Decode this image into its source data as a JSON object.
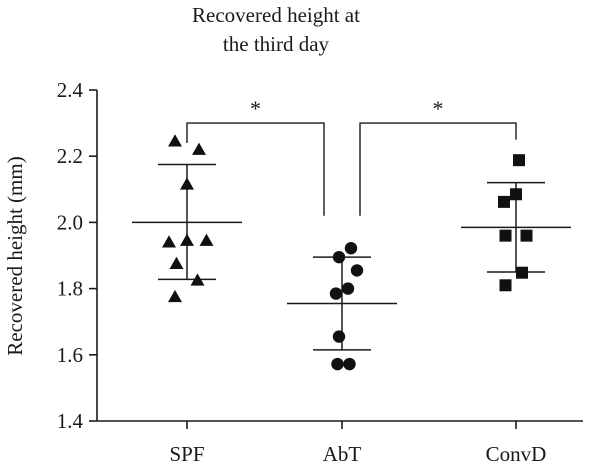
{
  "chart_data": {
    "type": "scatter",
    "title_lines": [
      "Recovered height at",
      "the third day"
    ],
    "xlabel": "",
    "ylabel": "Recovered height (mm)",
    "ylim": [
      1.4,
      2.4
    ],
    "yticks": [
      "1.4",
      "1.6",
      "1.8",
      "2.0",
      "2.2",
      "2.4"
    ],
    "categories": [
      "SPF",
      "AbT",
      "ConvD"
    ],
    "grid": false,
    "groups": [
      {
        "category": "SPF",
        "marker": "triangle",
        "mean": 2.0,
        "sd_upper": 2.175,
        "sd_lower": 1.828,
        "points": [
          {
            "dx": -0.08,
            "y": 2.245
          },
          {
            "dx": 0.08,
            "y": 2.22
          },
          {
            "dx": 0.0,
            "y": 2.115
          },
          {
            "dx": -0.12,
            "y": 1.94
          },
          {
            "dx": 0.0,
            "y": 1.945
          },
          {
            "dx": 0.13,
            "y": 1.945
          },
          {
            "dx": -0.07,
            "y": 1.875
          },
          {
            "dx": 0.07,
            "y": 1.825
          },
          {
            "dx": -0.08,
            "y": 1.775
          }
        ]
      },
      {
        "category": "AbT",
        "marker": "circle",
        "mean": 1.755,
        "sd_upper": 1.895,
        "sd_lower": 1.615,
        "points": [
          {
            "dx": 0.06,
            "y": 1.922
          },
          {
            "dx": -0.02,
            "y": 1.895
          },
          {
            "dx": 0.1,
            "y": 1.855
          },
          {
            "dx": 0.04,
            "y": 1.8
          },
          {
            "dx": -0.04,
            "y": 1.785
          },
          {
            "dx": -0.02,
            "y": 1.655
          },
          {
            "dx": -0.03,
            "y": 1.572
          },
          {
            "dx": 0.05,
            "y": 1.572
          }
        ]
      },
      {
        "category": "ConvD",
        "marker": "square",
        "mean": 1.985,
        "sd_upper": 2.12,
        "sd_lower": 1.85,
        "points": [
          {
            "dx": 0.02,
            "y": 2.188
          },
          {
            "dx": 0.0,
            "y": 2.085
          },
          {
            "dx": -0.08,
            "y": 2.062
          },
          {
            "dx": -0.07,
            "y": 1.96
          },
          {
            "dx": 0.07,
            "y": 1.96
          },
          {
            "dx": 0.04,
            "y": 1.848
          },
          {
            "dx": -0.07,
            "y": 1.81
          }
        ]
      }
    ],
    "significance": [
      {
        "from": "SPF",
        "to": "AbT",
        "label": "*",
        "y_top": 2.3,
        "y_from_end": 2.24,
        "y_to_end": 2.02
      },
      {
        "from": "AbT",
        "to": "ConvD",
        "label": "*",
        "y_top": 2.3,
        "y_from_end": 2.02,
        "y_to_end": 2.25
      }
    ]
  }
}
